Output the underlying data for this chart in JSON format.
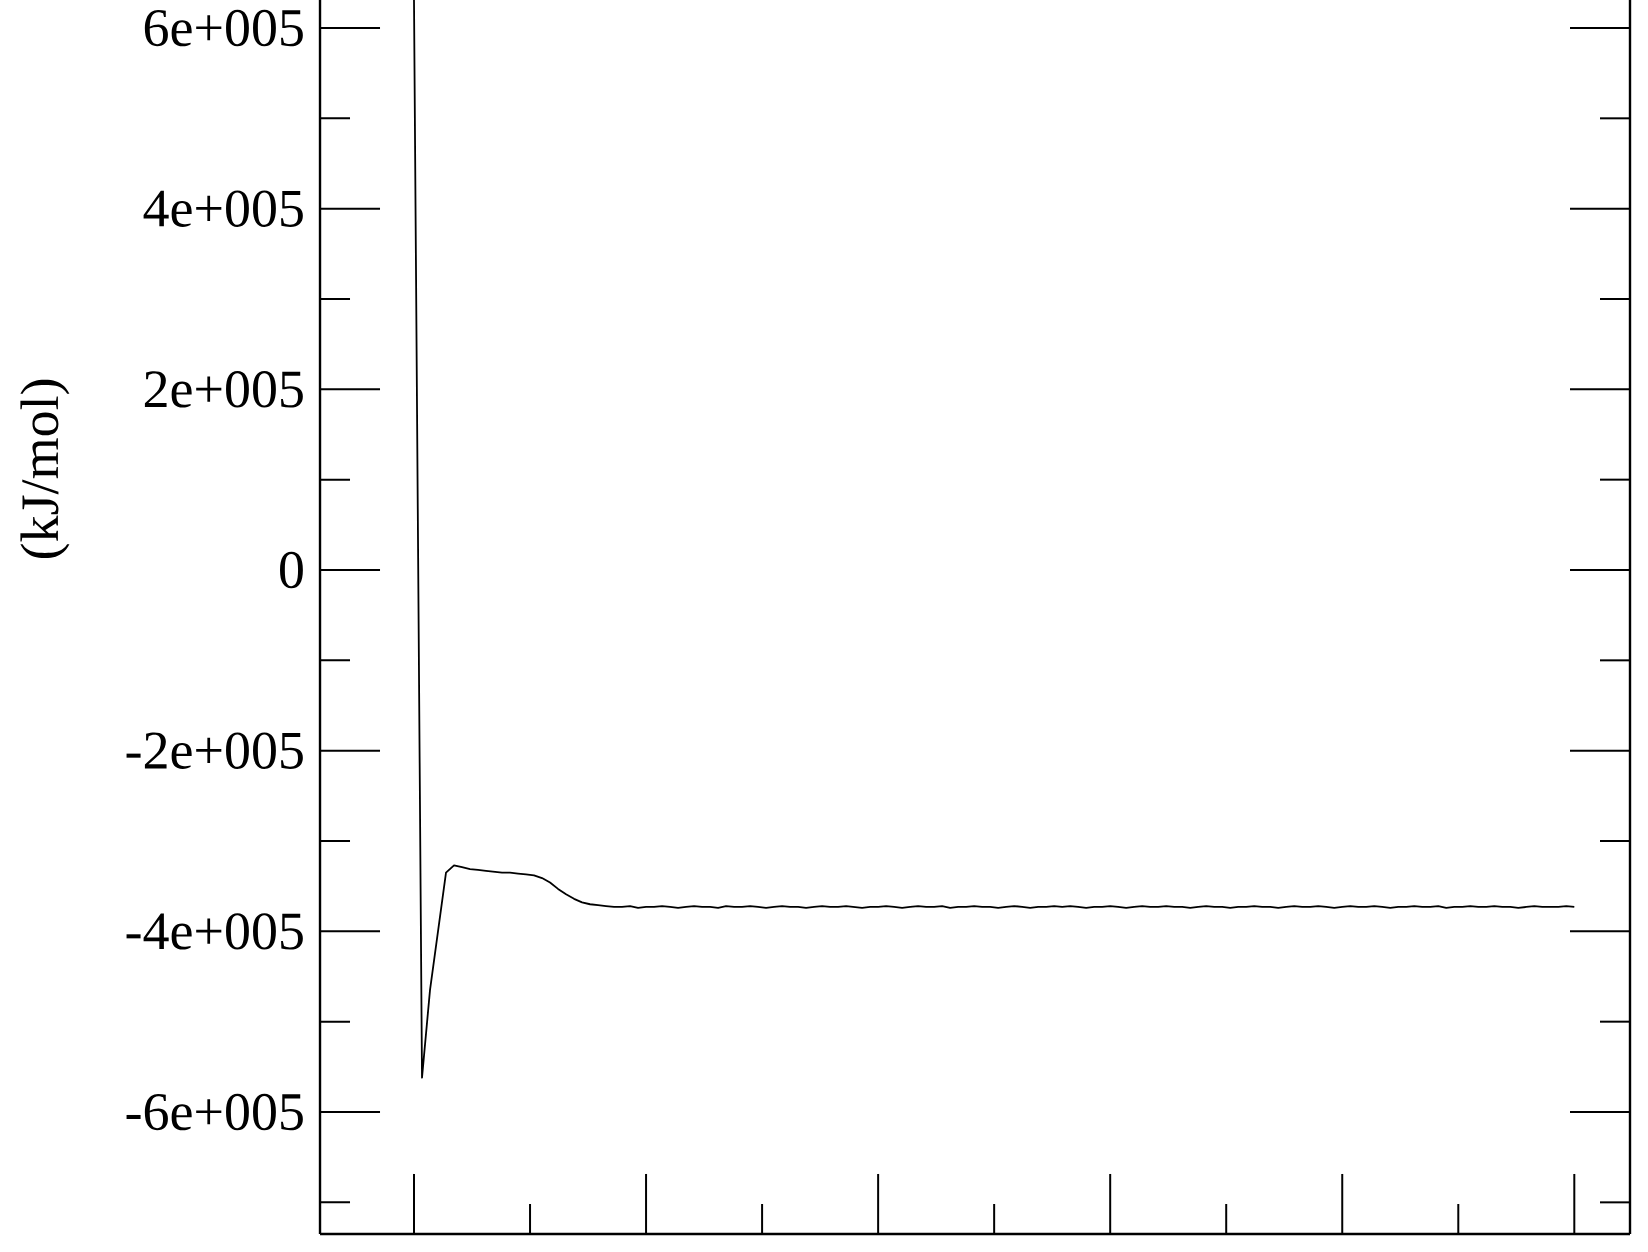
{
  "chart_data": {
    "type": "line",
    "ylabel": "(kJ/mol)",
    "color": "#000000",
    "tick_labels": "y",
    "ylim": [
      -735000,
      631000
    ],
    "yticks": [
      {
        "value": -700000,
        "label": null
      },
      {
        "value": -600000,
        "label": "-6e+005"
      },
      {
        "value": -500000,
        "label": null
      },
      {
        "value": -400000,
        "label": "-4e+005"
      },
      {
        "value": -300000,
        "label": null
      },
      {
        "value": -200000,
        "label": "-2e+005"
      },
      {
        "value": -100000,
        "label": null
      },
      0,
      {
        "value": 100000,
        "label": null
      },
      {
        "value": 200000,
        "label": "2e+005"
      },
      {
        "value": 300000,
        "label": null
      },
      {
        "value": 400000,
        "label": "4e+005"
      },
      {
        "value": 500000,
        "label": null
      },
      {
        "value": 600000,
        "label": "6e+005"
      }
    ],
    "categories": [
      null,
      null,
      null,
      null,
      null,
      null,
      null,
      null,
      null,
      null,
      null,
      null,
      null,
      null,
      null,
      null,
      null,
      null,
      null,
      null,
      null,
      null,
      null,
      null,
      null,
      null,
      null,
      null,
      null,
      null,
      null,
      null,
      null,
      null,
      null,
      null,
      null,
      null,
      null,
      null,
      null,
      null,
      null,
      null,
      null,
      null,
      null,
      null,
      null,
      null,
      null,
      null,
      null,
      null,
      null,
      null,
      null,
      null,
      null,
      null,
      null,
      null,
      null,
      null,
      null,
      null,
      null,
      null,
      null,
      null,
      null,
      null,
      null,
      null,
      null,
      null,
      null,
      null,
      null,
      null,
      null,
      null,
      null,
      null,
      null,
      null,
      null,
      null,
      null,
      null,
      null,
      null,
      null,
      null,
      null,
      null,
      null,
      null,
      null,
      null,
      null,
      null,
      null,
      null,
      null,
      null,
      null,
      null,
      null,
      null,
      null,
      null,
      null,
      null,
      null,
      null,
      null,
      null,
      null,
      null,
      null,
      null,
      null,
      null,
      null,
      null,
      null,
      null,
      null,
      null,
      null,
      null,
      null,
      null,
      null,
      null,
      null,
      null,
      null,
      null,
      null,
      null,
      null,
      null,
      null,
      null
    ],
    "values": [
      631000,
      -562000,
      -465000,
      -400000,
      -335000,
      -327000,
      -329000,
      -331000,
      -332000,
      -333000,
      -334000,
      -335000,
      -335000,
      -336000,
      -337000,
      -338000,
      -341000,
      -346000,
      -353000,
      -359000,
      -364000,
      -368000,
      -370000,
      -371000,
      -372000,
      -373000,
      -373000,
      -372000,
      -374000,
      -373000,
      -373000,
      -372000,
      -373000,
      -374000,
      -373000,
      -372000,
      -373000,
      -373000,
      -374000,
      -372000,
      -373000,
      -373000,
      -372000,
      -373000,
      -374000,
      -373000,
      -372000,
      -373000,
      -373000,
      -374000,
      -373000,
      -372000,
      -373000,
      -373000,
      -372000,
      -373000,
      -374000,
      -373000,
      -373000,
      -372000,
      -373000,
      -374000,
      -373000,
      -372000,
      -373000,
      -373000,
      -372000,
      -374000,
      -373000,
      -373000,
      -372000,
      -373000,
      -373000,
      -374000,
      -373000,
      -372000,
      -373000,
      -374000,
      -373000,
      -373000,
      -372000,
      -373000,
      -372000,
      -373000,
      -374000,
      -373000,
      -373000,
      -372000,
      -373000,
      -374000,
      -373000,
      -372000,
      -373000,
      -373000,
      -372000,
      -373000,
      -373000,
      -374000,
      -373000,
      -372000,
      -373000,
      -373000,
      -374000,
      -373000,
      -373000,
      -372000,
      -373000,
      -373000,
      -374000,
      -373000,
      -372000,
      -373000,
      -373000,
      -372000,
      -373000,
      -374000,
      -373000,
      -372000,
      -373000,
      -373000,
      -372000,
      -373000,
      -374000,
      -373000,
      -373000,
      -372000,
      -373000,
      -373000,
      -372000,
      -374000,
      -373000,
      -373000,
      -372000,
      -373000,
      -373000,
      -372000,
      -373000,
      -373000,
      -374000,
      -373000,
      -372000,
      -373000,
      -373000,
      -373000,
      -372000,
      -373000
    ]
  }
}
